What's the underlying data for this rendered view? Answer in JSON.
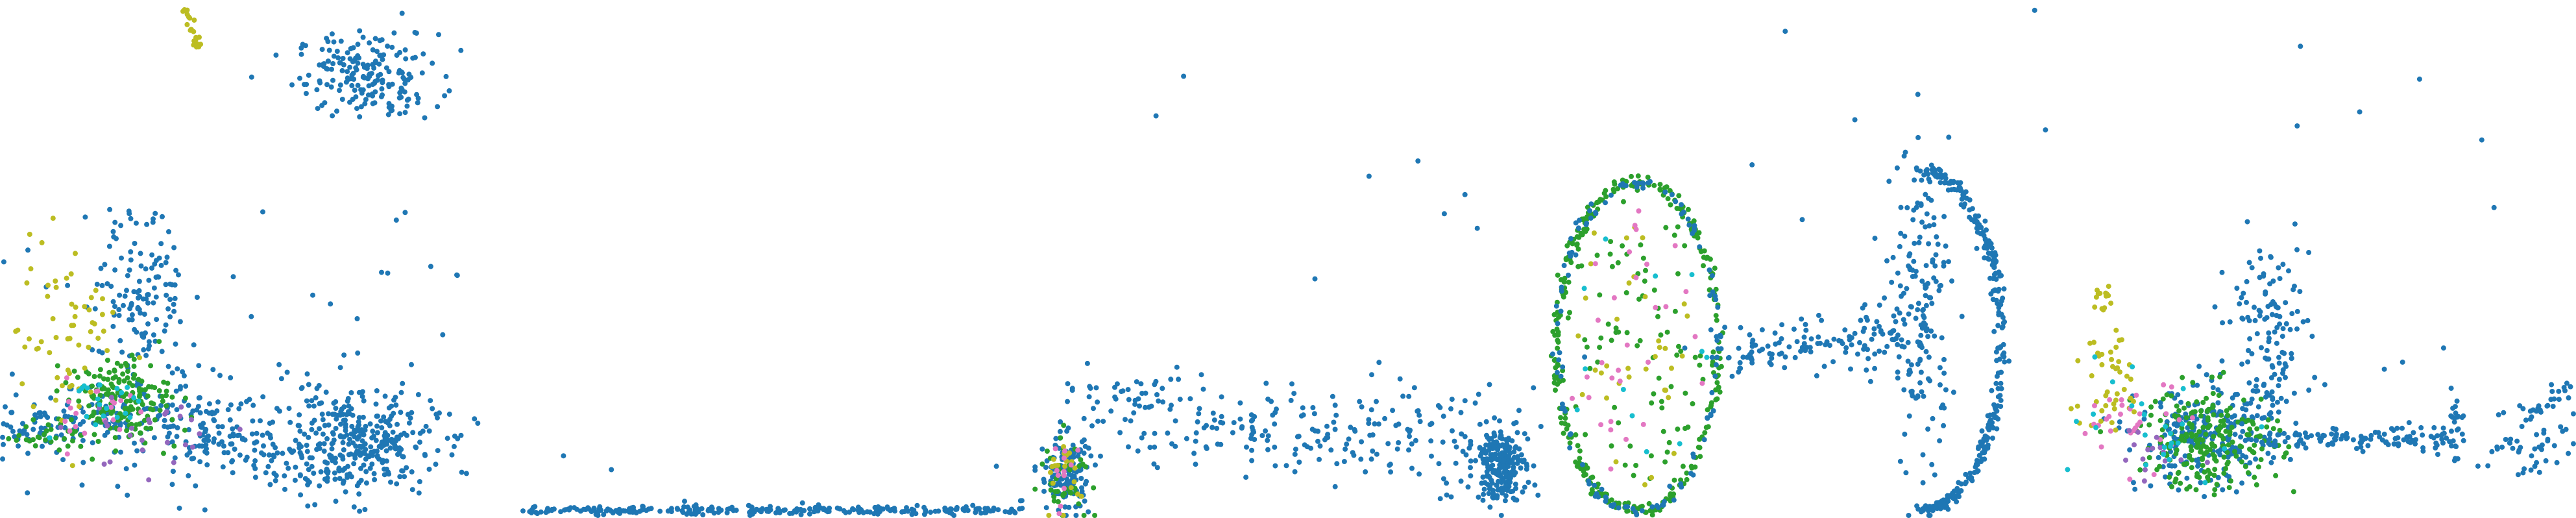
{
  "figure": {
    "panel_count": 5,
    "background": "#ffffff",
    "axes_visible": false,
    "grid": false,
    "legend": "none"
  },
  "palette": {
    "blue": "#1f77b4",
    "green": "#2ca02c",
    "olive": "#bcbd22",
    "pink": "#e377c2",
    "purple": "#9467bd",
    "cyan": "#17becf"
  },
  "chart_data": [
    {
      "type": "scatter",
      "title": "",
      "xlabel": "",
      "ylabel": "",
      "xlim": [
        0,
        100
      ],
      "ylim": [
        0,
        100
      ],
      "grid": false,
      "legend": "none",
      "clusters": [
        {
          "color": "blue",
          "kind": "blob",
          "n": 180,
          "cx": 72,
          "cy": 86,
          "sx": 7,
          "sy": 4,
          "r": 4
        },
        {
          "color": "blue",
          "kind": "blob",
          "n": 320,
          "cx": 70,
          "cy": 14,
          "sx": 8,
          "sy": 5,
          "r": 4
        },
        {
          "color": "blue",
          "kind": "blob",
          "n": 120,
          "cx": 28,
          "cy": 42,
          "sx": 4,
          "sy": 8,
          "r": 4
        },
        {
          "color": "blue",
          "kind": "blob",
          "n": 140,
          "cx": 40,
          "cy": 18,
          "sx": 15,
          "sy": 5,
          "r": 4
        },
        {
          "color": "blue",
          "kind": "line",
          "n": 90,
          "x0": 2,
          "y0": 16,
          "x1": 25,
          "y1": 20,
          "jitter": 2.5,
          "r": 4
        },
        {
          "color": "blue",
          "kind": "line",
          "n": 90,
          "x0": 25,
          "y0": 18,
          "x1": 60,
          "y1": 9,
          "jitter": 3,
          "r": 4
        },
        {
          "color": "blue",
          "kind": "line",
          "n": 14,
          "x0": 76,
          "y0": 78,
          "x1": 81,
          "y1": 86,
          "jitter": 0.4,
          "r": 4
        },
        {
          "color": "blue",
          "kind": "scatter",
          "n": 60,
          "x0": 0,
          "y0": 0,
          "x1": 95,
          "y1": 60,
          "r": 4
        },
        {
          "color": "green",
          "kind": "blob",
          "n": 160,
          "cx": 23,
          "cy": 23,
          "sx": 5,
          "sy": 4,
          "r": 4
        },
        {
          "color": "green",
          "kind": "line",
          "n": 40,
          "x0": 2,
          "y0": 15,
          "x1": 35,
          "y1": 18,
          "jitter": 2,
          "r": 4
        },
        {
          "color": "olive",
          "kind": "blob",
          "n": 60,
          "cx": 13,
          "cy": 35,
          "sx": 5,
          "sy": 10,
          "r": 4
        },
        {
          "color": "olive",
          "kind": "line",
          "n": 22,
          "x0": 36,
          "y0": 99,
          "x1": 39,
          "y1": 91,
          "jitter": 0.4,
          "r": 4
        },
        {
          "color": "pink",
          "kind": "blob",
          "n": 20,
          "cx": 18,
          "cy": 20,
          "sx": 6,
          "sy": 4,
          "r": 4
        },
        {
          "color": "purple",
          "kind": "blob",
          "n": 25,
          "cx": 30,
          "cy": 16,
          "sx": 8,
          "sy": 4,
          "r": 4
        },
        {
          "color": "cyan",
          "kind": "blob",
          "n": 20,
          "cx": 20,
          "cy": 22,
          "sx": 5,
          "sy": 4,
          "r": 4
        }
      ]
    },
    {
      "type": "scatter",
      "title": "",
      "xlabel": "",
      "ylabel": "",
      "xlim": [
        0,
        100
      ],
      "ylim": [
        0,
        100
      ],
      "grid": false,
      "legend": "none",
      "clusters": [
        {
          "color": "blue",
          "kind": "line",
          "n": 260,
          "x0": 1,
          "y0": 1,
          "x1": 99,
          "y1": 1,
          "jitter": 0.4,
          "r": 4
        },
        {
          "color": "blue",
          "kind": "scatter",
          "n": 6,
          "x0": 5,
          "y0": 2,
          "x1": 95,
          "y1": 16,
          "r": 4
        },
        {
          "color": "blue",
          "kind": "line",
          "n": 4,
          "x0": 99,
          "y0": 1,
          "x1": 99,
          "y1": 3,
          "jitter": 0.3,
          "r": 4
        }
      ]
    },
    {
      "type": "scatter",
      "title": "",
      "xlabel": "",
      "ylabel": "",
      "xlim": [
        0,
        100
      ],
      "ylim": [
        0,
        100
      ],
      "grid": false,
      "legend": "none",
      "clusters": [
        {
          "color": "blue",
          "kind": "blob",
          "n": 220,
          "cx": 92,
          "cy": 10,
          "sx": 2.5,
          "sy": 3.5,
          "r": 4
        },
        {
          "color": "blue",
          "kind": "line",
          "n": 260,
          "x0": 10,
          "y0": 20,
          "x1": 92,
          "y1": 14,
          "jitter": 5,
          "r": 4
        },
        {
          "color": "blue",
          "kind": "blob",
          "n": 140,
          "cx": 6,
          "cy": 8,
          "sx": 2.5,
          "sy": 4,
          "r": 4
        },
        {
          "color": "blue",
          "kind": "scatter",
          "n": 8,
          "x0": 15,
          "y0": 45,
          "x1": 88,
          "y1": 100,
          "r": 4
        },
        {
          "color": "green",
          "kind": "blob",
          "n": 40,
          "cx": 6,
          "cy": 8,
          "sx": 2.5,
          "sy": 4,
          "r": 4
        },
        {
          "color": "olive",
          "kind": "blob",
          "n": 20,
          "cx": 6,
          "cy": 8,
          "sx": 2.5,
          "sy": 4,
          "r": 4
        },
        {
          "color": "pink",
          "kind": "blob",
          "n": 12,
          "cx": 6,
          "cy": 8,
          "sx": 2.5,
          "sy": 4,
          "r": 4
        }
      ]
    },
    {
      "type": "scatter",
      "title": "",
      "xlabel": "",
      "ylabel": "",
      "xlim": [
        0,
        100
      ],
      "ylim": [
        0,
        100
      ],
      "grid": false,
      "legend": "none",
      "clusters": [
        {
          "color": "green",
          "kind": "ellipse",
          "n": 300,
          "cx": 17,
          "cy": 33,
          "rx": 16,
          "ry": 32,
          "jitter": 0.6,
          "r": 4
        },
        {
          "color": "blue",
          "kind": "ellipse",
          "n": 120,
          "cx": 17,
          "cy": 33,
          "rx": 16,
          "ry": 32,
          "jitter": 0.6,
          "r": 4
        },
        {
          "color": "green",
          "kind": "fill",
          "n": 80,
          "cx": 17,
          "cy": 33,
          "rx": 14,
          "ry": 29,
          "r": 4
        },
        {
          "color": "olive",
          "kind": "fill",
          "n": 35,
          "cx": 17,
          "cy": 33,
          "rx": 14,
          "ry": 29,
          "r": 4
        },
        {
          "color": "pink",
          "kind": "fill",
          "n": 30,
          "cx": 17,
          "cy": 33,
          "rx": 14,
          "ry": 29,
          "r": 4
        },
        {
          "color": "cyan",
          "kind": "fill",
          "n": 12,
          "cx": 17,
          "cy": 33,
          "rx": 14,
          "ry": 29,
          "r": 4
        },
        {
          "color": "blue",
          "kind": "ellipse",
          "n": 300,
          "cx": 73,
          "cy": 34,
          "rx": 16,
          "ry": 33,
          "jitter": 0.6,
          "arc": [
            -1.6,
            1.6
          ],
          "r": 4
        },
        {
          "color": "blue",
          "kind": "line",
          "n": 120,
          "x0": 33,
          "y0": 32,
          "x1": 68,
          "y1": 35,
          "jitter": 2.5,
          "r": 4
        },
        {
          "color": "blue",
          "kind": "blob",
          "n": 180,
          "cx": 73,
          "cy": 40,
          "sx": 3,
          "sy": 16,
          "r": 4
        },
        {
          "color": "blue",
          "kind": "scatter",
          "n": 8,
          "x0": 5,
          "y0": 20,
          "x1": 98,
          "y1": 100,
          "r": 4
        }
      ]
    },
    {
      "type": "scatter",
      "title": "",
      "xlabel": "",
      "ylabel": "",
      "xlim": [
        0,
        100
      ],
      "ylim": [
        0,
        100
      ],
      "grid": false,
      "legend": "none",
      "clusters": [
        {
          "color": "blue",
          "kind": "blob",
          "n": 240,
          "cx": 28,
          "cy": 15,
          "sx": 7,
          "sy": 5,
          "r": 4
        },
        {
          "color": "green",
          "kind": "blob",
          "n": 220,
          "cx": 28,
          "cy": 15,
          "sx": 7,
          "sy": 5,
          "r": 4
        },
        {
          "color": "blue",
          "kind": "line",
          "n": 120,
          "x0": 38,
          "y0": 15,
          "x1": 77,
          "y1": 15,
          "jitter": 1.2,
          "r": 4
        },
        {
          "color": "blue",
          "kind": "blob",
          "n": 130,
          "cx": 40,
          "cy": 36,
          "sx": 4,
          "sy": 9,
          "r": 4
        },
        {
          "color": "blue",
          "kind": "line",
          "n": 20,
          "x0": 77,
          "y0": 10,
          "x1": 77,
          "y1": 22,
          "jitter": 0.6,
          "r": 4
        },
        {
          "color": "blue",
          "kind": "blob",
          "n": 50,
          "cx": 90,
          "cy": 15,
          "sx": 5,
          "sy": 4,
          "r": 4
        },
        {
          "color": "blue",
          "kind": "line",
          "n": 20,
          "x0": 90,
          "y0": 20,
          "x1": 99,
          "y1": 25,
          "jitter": 1,
          "r": 4
        },
        {
          "color": "blue",
          "kind": "scatter",
          "n": 10,
          "x0": 40,
          "y0": 20,
          "x1": 97,
          "y1": 100,
          "r": 4
        },
        {
          "color": "olive",
          "kind": "blob",
          "n": 45,
          "cx": 8,
          "cy": 27,
          "sx": 4,
          "sy": 6,
          "r": 4
        },
        {
          "color": "olive",
          "kind": "blob",
          "n": 12,
          "cx": 7,
          "cy": 42,
          "sx": 0.8,
          "sy": 2,
          "r": 4
        },
        {
          "color": "pink",
          "kind": "blob",
          "n": 30,
          "cx": 14,
          "cy": 18,
          "sx": 5,
          "sy": 4,
          "r": 4
        },
        {
          "color": "purple",
          "kind": "blob",
          "n": 15,
          "cx": 20,
          "cy": 12,
          "sx": 6,
          "sy": 4,
          "r": 4
        },
        {
          "color": "cyan",
          "kind": "blob",
          "n": 25,
          "cx": 18,
          "cy": 16,
          "sx": 8,
          "sy": 5,
          "r": 4
        }
      ]
    }
  ]
}
